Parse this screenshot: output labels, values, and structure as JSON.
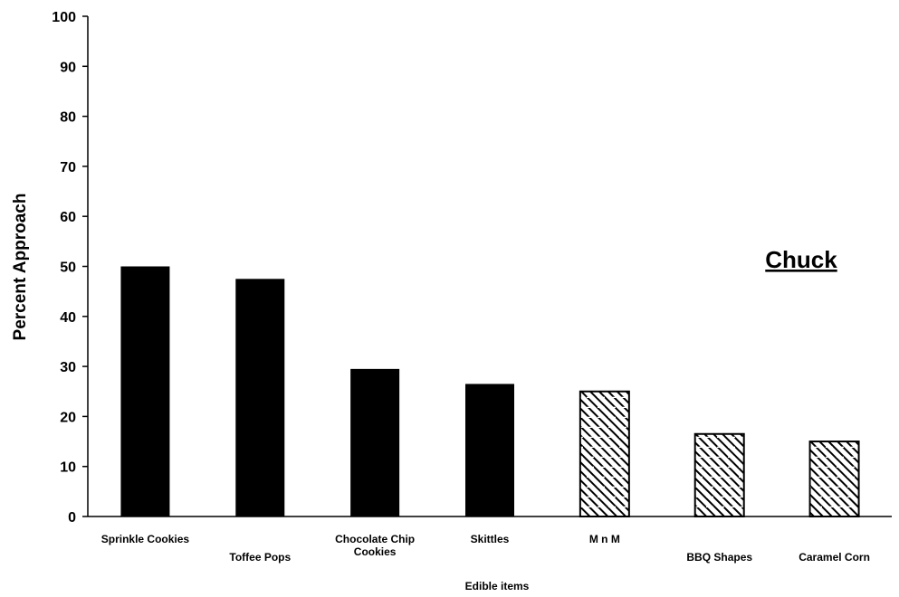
{
  "chart_data": {
    "type": "bar",
    "title": "Chuck",
    "xlabel": "Edible items",
    "ylabel": "Percent Approach",
    "ylim": [
      0,
      100
    ],
    "yticks": [
      0,
      10,
      20,
      30,
      40,
      50,
      60,
      70,
      80,
      90,
      100
    ],
    "grid": false,
    "categories": [
      "Sprinkle Cookies",
      "Toffee Pops",
      "Chocolate Chip Cookies",
      "Skittles",
      "M n M",
      "BBQ Shapes",
      "Caramel Corn"
    ],
    "values": [
      50,
      47.5,
      29.5,
      26.5,
      25,
      16.5,
      15
    ],
    "fill_styles": [
      "solid",
      "solid",
      "solid",
      "solid",
      "hatched",
      "hatched",
      "hatched"
    ],
    "colors": {
      "solid": "#000000",
      "hatch": "#000000",
      "background": "#ffffff"
    }
  }
}
